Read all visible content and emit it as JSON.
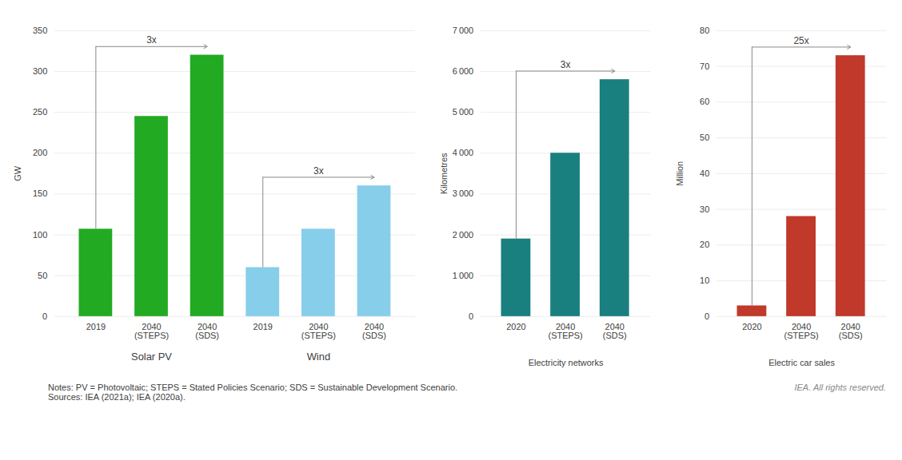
{
  "chart_data": [
    {
      "type": "bar",
      "ylabel": "GW",
      "series": [
        {
          "name": "Solar PV",
          "color": "#22aa22",
          "categories": [
            "2019",
            "2040\n(STEPS)",
            "2040\n(SDS)"
          ],
          "values": [
            107,
            245,
            320
          ],
          "annotation": "3x"
        },
        {
          "name": "Wind",
          "color": "#87ceeb",
          "categories": [
            "2019",
            "2040\n(STEPS)",
            "2040\n(SDS)"
          ],
          "values": [
            60,
            107,
            160
          ],
          "annotation": "3x"
        }
      ],
      "ylim": [
        0,
        350
      ],
      "yticks": [
        0,
        50,
        100,
        150,
        200,
        250,
        300,
        350
      ],
      "grid": true
    },
    {
      "type": "bar",
      "title": "Electricity networks",
      "ylabel": "Kilometres",
      "categories": [
        "2020",
        "2040\n(STEPS)",
        "2040\n(SDS)"
      ],
      "values": [
        1900,
        4000,
        5800
      ],
      "color": "#1a7f7f",
      "annotation": "3x",
      "ylim": [
        0,
        7000
      ],
      "yticks": [
        0,
        {
          "value": 1000,
          "label": "1 000"
        },
        {
          "value": 2000,
          "label": "2 000"
        },
        {
          "value": 3000,
          "label": "3 000"
        },
        {
          "value": 4000,
          "label": "4 000"
        },
        {
          "value": 5000,
          "label": "5 000"
        },
        {
          "value": 6000,
          "label": "6 000"
        },
        {
          "value": 7000,
          "label": "7 000"
        }
      ],
      "grid": true
    },
    {
      "type": "bar",
      "title": "Electric car sales",
      "ylabel": "Million",
      "categories": [
        "2020",
        "2040\n(STEPS)",
        "2040\n(SDS)"
      ],
      "values": [
        3,
        28,
        73
      ],
      "color": "#c0392b",
      "annotation": "25x",
      "ylim": [
        0,
        80
      ],
      "yticks": [
        0,
        10,
        20,
        30,
        40,
        50,
        60,
        70,
        80
      ],
      "grid": true
    }
  ],
  "caption": "Notes: PV = Photovoltaic; STEPS = Stated Policies Scenario; SDS = Sustainable Development Scenario.\nSources: IEA (2021a); IEA (2020a).",
  "credit": "IEA. All rights reserved."
}
